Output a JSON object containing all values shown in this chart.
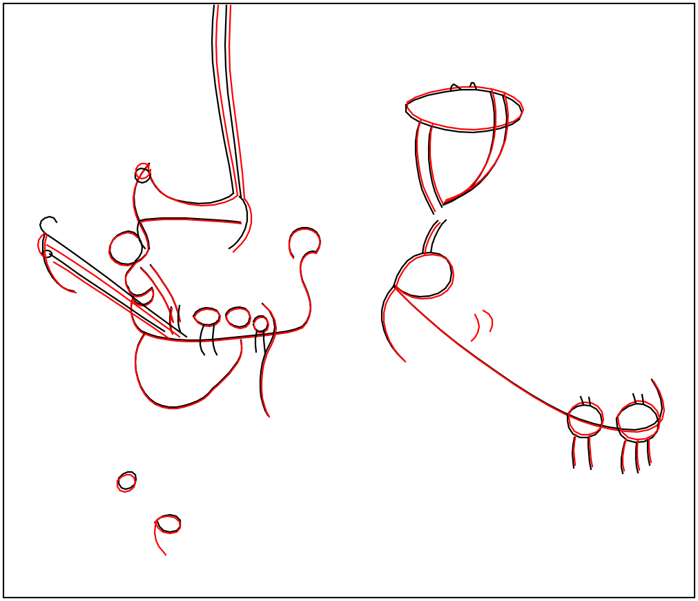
{
  "background_color": "#ffffff",
  "lw_b": 1.6,
  "lw_r": 1.6,
  "figsize": [
    10.11,
    8.71
  ],
  "dpi": 100
}
